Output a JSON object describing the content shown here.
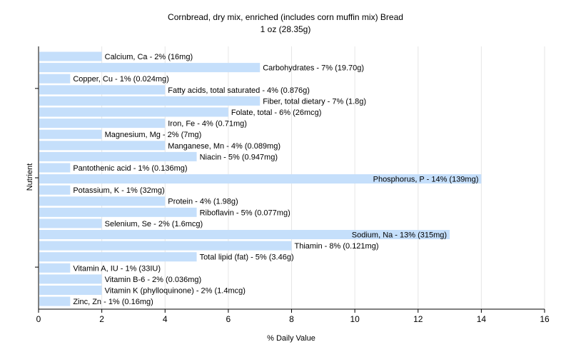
{
  "chart_data": {
    "type": "bar",
    "orientation": "horizontal",
    "title": "Cornbread, dry mix, enriched (includes corn muffin mix) Bread",
    "subtitle": "1 oz (28.35g)",
    "xlabel": "% Daily Value",
    "ylabel": "Nutrient",
    "xlim": [
      0,
      16
    ],
    "xticks": [
      "0",
      "2",
      "4",
      "6",
      "8",
      "10",
      "12",
      "14",
      "16"
    ],
    "grid": true,
    "bar_color": "#c5dffb",
    "categories": [
      "Calcium, Ca - 2% (16mg)",
      "Carbohydrates - 7% (19.70g)",
      "Copper, Cu - 1% (0.024mg)",
      "Fatty acids, total saturated - 4% (0.876g)",
      "Fiber, total dietary - 7% (1.8g)",
      "Folate, total - 6% (26mcg)",
      "Iron, Fe - 4% (0.71mg)",
      "Magnesium, Mg - 2% (7mg)",
      "Manganese, Mn - 4% (0.089mg)",
      "Niacin - 5% (0.947mg)",
      "Pantothenic acid - 1% (0.136mg)",
      "Phosphorus, P - 14% (139mg)",
      "Potassium, K - 1% (32mg)",
      "Protein - 4% (1.98g)",
      "Riboflavin - 5% (0.077mg)",
      "Selenium, Se - 2% (1.6mcg)",
      "Sodium, Na - 13% (315mg)",
      "Thiamin - 8% (0.121mg)",
      "Total lipid (fat) - 5% (3.46g)",
      "Vitamin A, IU - 1% (33IU)",
      "Vitamin B-6 - 2% (0.036mg)",
      "Vitamin K (phylloquinone) - 2% (1.4mcg)",
      "Zinc, Zn - 1% (0.16mg)"
    ],
    "values": [
      2,
      7,
      1,
      4,
      7,
      6,
      4,
      2,
      4,
      5,
      1,
      14,
      1,
      4,
      5,
      2,
      13,
      8,
      5,
      1,
      2,
      2,
      1
    ]
  }
}
